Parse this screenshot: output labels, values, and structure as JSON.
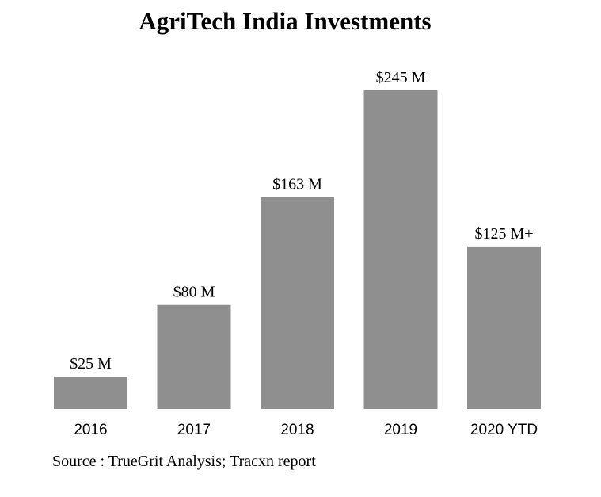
{
  "chart_data": {
    "type": "bar",
    "title": "AgriTech India Investments",
    "categories": [
      "2016",
      "2017",
      "2018",
      "2019",
      "2020 YTD"
    ],
    "values": [
      25,
      80,
      163,
      245,
      125
    ],
    "data_labels": [
      "$25 M",
      "$80 M",
      "$163 M",
      "$245 M",
      "$125 M+"
    ],
    "unit": "$ M",
    "xlabel": "",
    "ylabel": "",
    "ylim": [
      0,
      245
    ],
    "grid": false,
    "bar_color": "#8f8f8f"
  },
  "source": "Source : TrueGrit Analysis; Tracxn report"
}
